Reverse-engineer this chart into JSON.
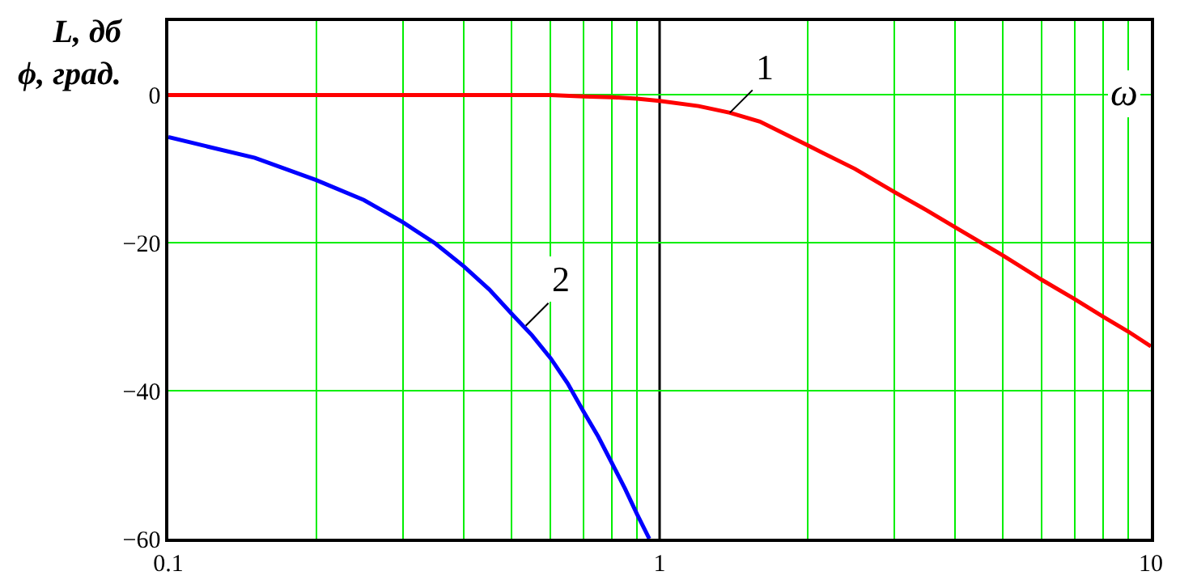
{
  "chart_data": {
    "type": "line",
    "xlabel": "ω",
    "ylabel": "L, дб\nϕ, град.",
    "log": "x",
    "grid": true,
    "xlim": [
      0.1,
      10
    ],
    "ylim": [
      -60,
      10
    ],
    "xticks": [
      {
        "value": 0.1,
        "label": "0.1"
      },
      1,
      10
    ],
    "yticks": [
      0,
      {
        "value": -20,
        "label": "−20"
      },
      {
        "value": -40,
        "label": "−40"
      },
      {
        "value": -60,
        "label": "−60"
      }
    ],
    "series": [
      {
        "color": "#ff0000",
        "x": [
          0.1,
          0.3,
          0.6,
          0.7,
          0.8,
          0.9,
          1,
          1.2,
          1.39,
          1.6,
          2,
          2.5,
          3,
          3.5,
          4,
          5,
          6,
          7,
          8,
          9,
          10
        ],
        "values": [
          0,
          0,
          0,
          -0.2,
          -0.3,
          -0.5,
          -0.8,
          -1.5,
          -2.4,
          -3.6,
          -6.8,
          -10,
          -13.1,
          -15.6,
          -17.9,
          -21.7,
          -25,
          -27.6,
          -30,
          -32,
          -34
        ]
      },
      {
        "color": "#0000ff",
        "x": [
          0.1,
          0.15,
          0.2,
          0.25,
          0.3,
          0.35,
          0.4,
          0.45,
          0.5,
          0.55,
          0.6,
          0.65,
          0.7,
          0.75,
          0.8,
          0.85,
          0.9,
          0.953
        ],
        "values": [
          -5.7,
          -8.5,
          -11.5,
          -14.2,
          -17.2,
          -20.1,
          -23.2,
          -26.3,
          -29.6,
          -32.5,
          -35.6,
          -39,
          -42.8,
          -46.2,
          -49.8,
          -53.2,
          -56.7,
          -60
        ]
      }
    ],
    "ref_lines": [
      {
        "axis": "x",
        "value": 1,
        "color": "#000000"
      }
    ],
    "annotations": [
      {
        "text": "1",
        "x": 1.39,
        "y": -2.4
      },
      {
        "text": "2",
        "x": 0.534,
        "y": -31.2
      }
    ]
  }
}
